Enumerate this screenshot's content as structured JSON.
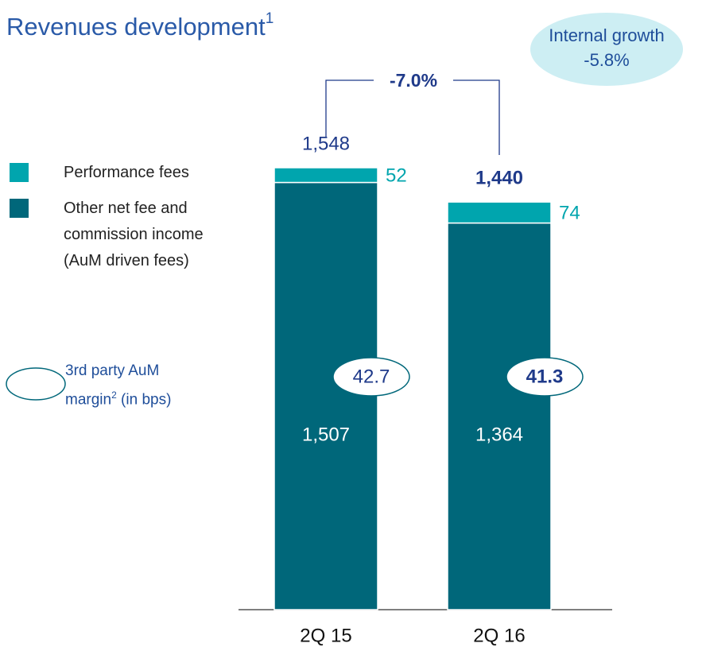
{
  "chart_data": {
    "type": "stacked_bar",
    "title": "Revenues development",
    "title_footnote": "1",
    "categories": [
      "2Q 15",
      "2Q 16"
    ],
    "series": [
      {
        "name": "Other net fee and commission income (AuM driven fees)",
        "color": "#00677a",
        "values": [
          1507,
          1364
        ],
        "value_labels": [
          "1,507",
          "1,364"
        ]
      },
      {
        "name": "Performance fees",
        "color": "#00a5ae",
        "values": [
          52,
          74
        ]
      }
    ],
    "totals": [
      1548,
      1440
    ],
    "total_labels": [
      "1,548",
      "1,440"
    ],
    "change_label": "-7.0%",
    "internal_growth": {
      "label": "Internal growth",
      "value": "-5.8%"
    },
    "margins": [
      42.7,
      41.3
    ],
    "margin_legend": {
      "text": "3rd party AuM margin",
      "footnote": "2",
      "unit": "(in bps)"
    }
  }
}
